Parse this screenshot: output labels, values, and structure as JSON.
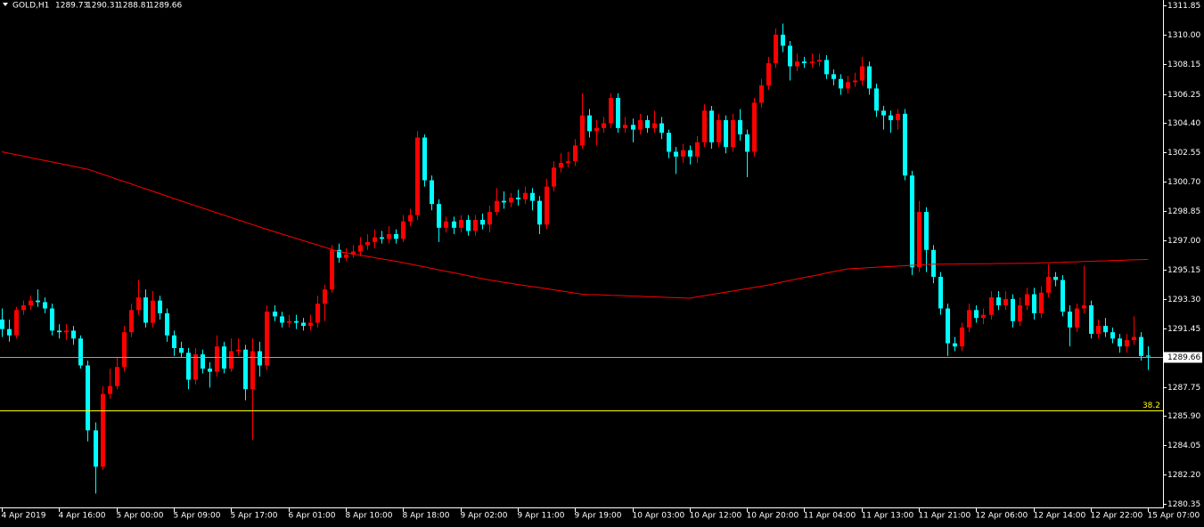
{
  "chart_data": {
    "type": "candlestick",
    "symbol": "GOLD,H1",
    "up_color": "#ff0000",
    "down_color": "#00ffff",
    "ylim": [
      1280.13,
      1312.19
    ],
    "yticks": [
      1311.85,
      {
        "value": 1310.0,
        "label": "1310.00"
      },
      1308.15,
      1306.25,
      {
        "value": 1304.4,
        "label": "1304.40"
      },
      1302.55,
      {
        "value": 1300.7,
        "label": "1300.70"
      },
      1298.85,
      {
        "value": 1297.0,
        "label": "1297.00"
      },
      1295.15,
      {
        "value": 1293.3,
        "label": "1293.30"
      },
      1291.45,
      1287.75,
      {
        "value": 1285.9,
        "label": "1285.90"
      },
      1284.05,
      {
        "value": 1282.2,
        "label": "1282.20"
      },
      1280.35
    ],
    "fib": {
      "label": "38.2",
      "price": 1286.26,
      "color": "#ffff00"
    },
    "price_line_color": "#a0a0b0",
    "categories": [
      "4 Apr 2019",
      null,
      null,
      null,
      null,
      null,
      null,
      null,
      "4 Apr 16:00",
      null,
      null,
      null,
      null,
      null,
      null,
      null,
      "5 Apr 00:00",
      null,
      null,
      null,
      null,
      null,
      null,
      null,
      "5 Apr 09:00",
      null,
      null,
      null,
      null,
      null,
      null,
      null,
      "5 Apr 17:00",
      null,
      null,
      null,
      null,
      null,
      null,
      null,
      "6 Apr 01:00",
      null,
      null,
      null,
      null,
      null,
      null,
      null,
      "8 Apr 10:00",
      null,
      null,
      null,
      null,
      null,
      null,
      null,
      "8 Apr 18:00",
      null,
      null,
      null,
      null,
      null,
      null,
      null,
      "9 Apr 02:00",
      null,
      null,
      null,
      null,
      null,
      null,
      null,
      "9 Apr 11:00",
      null,
      null,
      null,
      null,
      null,
      null,
      null,
      "9 Apr 19:00",
      null,
      null,
      null,
      null,
      null,
      null,
      null,
      "10 Apr 03:00",
      null,
      null,
      null,
      null,
      null,
      null,
      null,
      "10 Apr 12:00",
      null,
      null,
      null,
      null,
      null,
      null,
      null,
      "10 Apr 20:00",
      null,
      null,
      null,
      null,
      null,
      null,
      null,
      "11 Apr 04:00",
      null,
      null,
      null,
      null,
      null,
      null,
      null,
      "11 Apr 13:00",
      null,
      null,
      null,
      null,
      null,
      null,
      null,
      "11 Apr 21:00",
      null,
      null,
      null,
      null,
      null,
      null,
      null,
      "12 Apr 06:00",
      null,
      null,
      null,
      null,
      null,
      null,
      null,
      "12 Apr 14:00",
      null,
      null,
      null,
      null,
      null,
      null,
      null,
      "12 Apr 22:00",
      null,
      null,
      null,
      null,
      null,
      null,
      null,
      "15 Apr 07:00"
    ],
    "candles": [
      [
        1292.0,
        1292.7,
        1290.9,
        1291.4
      ],
      [
        1291.4,
        1292.0,
        1290.6,
        1291.0
      ],
      [
        1291.0,
        1292.8,
        1290.8,
        1292.6
      ],
      [
        1292.6,
        1293.2,
        1292.3,
        1292.9
      ],
      [
        1292.9,
        1293.5,
        1292.6,
        1293.2
      ],
      [
        1293.2,
        1293.9,
        1292.8,
        1293.1
      ],
      [
        1293.1,
        1293.4,
        1292.4,
        1292.7
      ],
      [
        1292.7,
        1293.0,
        1291.0,
        1291.3
      ],
      [
        1291.3,
        1291.7,
        1290.8,
        1291.2
      ],
      [
        1291.2,
        1291.7,
        1290.7,
        1291.3
      ],
      [
        1291.3,
        1291.6,
        1290.4,
        1290.8
      ],
      [
        1290.8,
        1291.0,
        1288.9,
        1289.1
      ],
      [
        1289.1,
        1289.4,
        1284.3,
        1285.0
      ],
      [
        1285.0,
        1285.5,
        1281.0,
        1282.7
      ],
      [
        1282.7,
        1287.8,
        1282.5,
        1287.3
      ],
      [
        1287.3,
        1288.9,
        1287.0,
        1287.8
      ],
      [
        1287.8,
        1289.6,
        1287.6,
        1289.0
      ],
      [
        1289.0,
        1291.6,
        1288.7,
        1291.2
      ],
      [
        1291.2,
        1293.0,
        1290.9,
        1292.6
      ],
      [
        1292.6,
        1294.5,
        1292.3,
        1293.4
      ],
      [
        1293.4,
        1293.9,
        1291.5,
        1291.8
      ],
      [
        1291.8,
        1293.8,
        1291.5,
        1293.2
      ],
      [
        1293.2,
        1293.5,
        1292.0,
        1292.4
      ],
      [
        1292.4,
        1292.7,
        1290.6,
        1291.0
      ],
      [
        1291.0,
        1291.3,
        1289.7,
        1290.2
      ],
      [
        1290.2,
        1290.6,
        1289.6,
        1289.9
      ],
      [
        1289.9,
        1290.2,
        1287.6,
        1288.2
      ],
      [
        1288.2,
        1290.2,
        1287.9,
        1289.8
      ],
      [
        1289.8,
        1290.1,
        1288.6,
        1288.9
      ],
      [
        1288.9,
        1289.3,
        1287.7,
        1288.7
      ],
      [
        1288.7,
        1291.0,
        1288.4,
        1290.3
      ],
      [
        1290.3,
        1290.6,
        1288.6,
        1288.9
      ],
      [
        1288.9,
        1290.8,
        1288.7,
        1290.0
      ],
      [
        1290.0,
        1290.8,
        1289.7,
        1290.1
      ],
      [
        1290.1,
        1290.4,
        1286.9,
        1287.6
      ],
      [
        1287.6,
        1290.8,
        1284.4,
        1290.0
      ],
      [
        1290.0,
        1290.6,
        1288.4,
        1289.1
      ],
      [
        1289.1,
        1292.9,
        1288.8,
        1292.5
      ],
      [
        1292.5,
        1292.9,
        1291.9,
        1292.2
      ],
      [
        1292.2,
        1292.5,
        1291.5,
        1291.8
      ],
      [
        1291.8,
        1292.3,
        1291.5,
        1291.9
      ],
      [
        1291.9,
        1292.3,
        1291.4,
        1291.8
      ],
      [
        1291.8,
        1292.1,
        1291.3,
        1291.6
      ],
      [
        1291.6,
        1292.3,
        1291.3,
        1291.8
      ],
      [
        1291.8,
        1293.5,
        1291.5,
        1293.0
      ],
      [
        1293.0,
        1294.2,
        1291.9,
        1293.9
      ],
      [
        1293.9,
        1296.7,
        1293.7,
        1296.4
      ],
      [
        1296.4,
        1296.8,
        1295.6,
        1295.9
      ],
      [
        1295.9,
        1296.5,
        1295.7,
        1296.1
      ],
      [
        1296.1,
        1296.7,
        1295.9,
        1296.3
      ],
      [
        1296.3,
        1297.2,
        1296.0,
        1296.7
      ],
      [
        1296.7,
        1297.4,
        1296.4,
        1296.9
      ],
      [
        1296.9,
        1297.7,
        1296.5,
        1297.2
      ],
      [
        1297.2,
        1297.6,
        1296.8,
        1297.1
      ],
      [
        1297.1,
        1297.9,
        1296.8,
        1297.4
      ],
      [
        1297.4,
        1297.7,
        1296.8,
        1297.1
      ],
      [
        1297.1,
        1298.6,
        1296.9,
        1298.2
      ],
      [
        1298.2,
        1299.0,
        1297.9,
        1298.6
      ],
      [
        1298.6,
        1303.9,
        1298.3,
        1303.5
      ],
      [
        1303.5,
        1303.7,
        1300.4,
        1300.8
      ],
      [
        1300.8,
        1301.1,
        1298.9,
        1299.3
      ],
      [
        1299.3,
        1299.6,
        1296.9,
        1297.8
      ],
      [
        1297.8,
        1298.5,
        1297.5,
        1298.2
      ],
      [
        1298.2,
        1298.5,
        1297.4,
        1297.8
      ],
      [
        1297.8,
        1298.6,
        1297.5,
        1298.3
      ],
      [
        1298.3,
        1298.6,
        1297.3,
        1297.6
      ],
      [
        1297.6,
        1298.6,
        1297.3,
        1298.3
      ],
      [
        1298.3,
        1298.7,
        1297.7,
        1298.0
      ],
      [
        1298.0,
        1299.2,
        1297.5,
        1298.8
      ],
      [
        1298.8,
        1300.3,
        1298.6,
        1299.5
      ],
      [
        1299.5,
        1300.1,
        1299.0,
        1299.4
      ],
      [
        1299.4,
        1300.0,
        1299.1,
        1299.7
      ],
      [
        1299.7,
        1300.2,
        1299.2,
        1299.6
      ],
      [
        1299.6,
        1300.4,
        1299.3,
        1300.0
      ],
      [
        1300.0,
        1300.3,
        1298.9,
        1299.5
      ],
      [
        1299.5,
        1299.8,
        1297.4,
        1298.0
      ],
      [
        1298.0,
        1300.9,
        1297.7,
        1300.4
      ],
      [
        1300.4,
        1302.0,
        1300.1,
        1301.6
      ],
      [
        1301.6,
        1302.5,
        1301.3,
        1301.9
      ],
      [
        1301.9,
        1302.6,
        1301.6,
        1302.0
      ],
      [
        1302.0,
        1303.4,
        1301.7,
        1303.0
      ],
      [
        1303.0,
        1306.3,
        1302.8,
        1304.9
      ],
      [
        1304.9,
        1305.3,
        1303.5,
        1303.9
      ],
      [
        1303.9,
        1304.6,
        1303.0,
        1304.1
      ],
      [
        1304.1,
        1304.8,
        1303.8,
        1304.4
      ],
      [
        1304.4,
        1306.3,
        1304.1,
        1306.0
      ],
      [
        1306.0,
        1306.3,
        1303.8,
        1304.1
      ],
      [
        1304.1,
        1304.8,
        1303.8,
        1304.3
      ],
      [
        1304.3,
        1304.7,
        1303.2,
        1304.0
      ],
      [
        1304.0,
        1305.0,
        1303.7,
        1304.6
      ],
      [
        1304.6,
        1304.9,
        1303.8,
        1304.1
      ],
      [
        1304.1,
        1305.2,
        1303.8,
        1304.4
      ],
      [
        1304.4,
        1304.8,
        1303.4,
        1303.8
      ],
      [
        1303.8,
        1304.0,
        1302.2,
        1302.6
      ],
      [
        1302.6,
        1302.9,
        1301.2,
        1302.3
      ],
      [
        1302.3,
        1303.1,
        1301.9,
        1302.7
      ],
      [
        1302.7,
        1303.0,
        1301.8,
        1302.3
      ],
      [
        1302.3,
        1303.6,
        1301.9,
        1303.2
      ],
      [
        1303.2,
        1305.6,
        1302.9,
        1305.2
      ],
      [
        1305.2,
        1305.5,
        1302.8,
        1303.2
      ],
      [
        1303.2,
        1305.0,
        1302.9,
        1304.6
      ],
      [
        1304.6,
        1304.9,
        1302.5,
        1302.9
      ],
      [
        1302.9,
        1305.0,
        1302.6,
        1304.6
      ],
      [
        1304.6,
        1305.3,
        1303.3,
        1303.7
      ],
      [
        1303.7,
        1304.0,
        1301.0,
        1302.6
      ],
      [
        1302.6,
        1306.0,
        1302.3,
        1305.7
      ],
      [
        1305.7,
        1307.2,
        1305.4,
        1306.8
      ],
      [
        1306.8,
        1308.6,
        1306.5,
        1308.2
      ],
      [
        1308.2,
        1310.4,
        1307.9,
        1310.0
      ],
      [
        1310.0,
        1310.7,
        1308.9,
        1309.3
      ],
      [
        1309.3,
        1309.6,
        1307.1,
        1308.0
      ],
      [
        1308.0,
        1308.8,
        1307.7,
        1308.3
      ],
      [
        1308.3,
        1308.6,
        1307.9,
        1308.2
      ],
      [
        1308.2,
        1308.8,
        1307.9,
        1308.3
      ],
      [
        1308.3,
        1308.8,
        1308.0,
        1308.4
      ],
      [
        1308.4,
        1308.7,
        1307.2,
        1307.5
      ],
      [
        1307.5,
        1307.8,
        1306.8,
        1307.2
      ],
      [
        1307.2,
        1307.5,
        1306.2,
        1306.6
      ],
      [
        1306.6,
        1307.4,
        1306.3,
        1307.0
      ],
      [
        1307.0,
        1307.6,
        1306.7,
        1307.1
      ],
      [
        1307.1,
        1308.6,
        1306.8,
        1308.0
      ],
      [
        1308.0,
        1308.3,
        1306.2,
        1306.6
      ],
      [
        1306.6,
        1306.9,
        1304.8,
        1305.2
      ],
      [
        1305.2,
        1305.5,
        1304.0,
        1304.9
      ],
      [
        1304.9,
        1305.2,
        1303.8,
        1304.6
      ],
      [
        1304.6,
        1305.3,
        1304.0,
        1305.0
      ],
      [
        1305.0,
        1305.3,
        1300.8,
        1301.1
      ],
      [
        1301.1,
        1301.4,
        1294.8,
        1295.3
      ],
      [
        1295.3,
        1299.5,
        1295.0,
        1298.8
      ],
      [
        1298.8,
        1299.1,
        1295.0,
        1296.4
      ],
      [
        1296.4,
        1296.7,
        1294.3,
        1294.7
      ],
      [
        1294.7,
        1295.0,
        1292.3,
        1292.7
      ],
      [
        1292.7,
        1293.0,
        1289.7,
        1290.5
      ],
      [
        1290.5,
        1290.9,
        1290.0,
        1290.3
      ],
      [
        1290.3,
        1291.8,
        1290.0,
        1291.5
      ],
      [
        1291.5,
        1293.0,
        1291.2,
        1292.6
      ],
      [
        1292.6,
        1292.9,
        1291.8,
        1292.1
      ],
      [
        1292.1,
        1292.7,
        1291.7,
        1292.3
      ],
      [
        1292.3,
        1293.8,
        1292.0,
        1293.4
      ],
      [
        1293.4,
        1293.8,
        1292.6,
        1292.9
      ],
      [
        1292.9,
        1293.8,
        1292.6,
        1293.3
      ],
      [
        1293.3,
        1293.6,
        1291.5,
        1291.9
      ],
      [
        1291.9,
        1293.4,
        1291.6,
        1292.9
      ],
      [
        1292.9,
        1294.0,
        1292.6,
        1293.6
      ],
      [
        1293.6,
        1294.0,
        1292.0,
        1292.4
      ],
      [
        1292.4,
        1294.1,
        1292.1,
        1293.7
      ],
      [
        1293.7,
        1295.5,
        1293.4,
        1294.7
      ],
      [
        1294.7,
        1295.0,
        1294.1,
        1294.5
      ],
      [
        1294.5,
        1294.8,
        1292.2,
        1292.5
      ],
      [
        1292.5,
        1292.9,
        1290.3,
        1291.5
      ],
      [
        1291.5,
        1293.0,
        1291.2,
        1292.7
      ],
      [
        1292.7,
        1295.4,
        1292.4,
        1292.9
      ],
      [
        1292.9,
        1293.2,
        1290.8,
        1291.1
      ],
      [
        1291.1,
        1292.0,
        1290.8,
        1291.6
      ],
      [
        1291.6,
        1292.1,
        1290.9,
        1291.2
      ],
      [
        1291.2,
        1291.5,
        1290.5,
        1290.8
      ],
      [
        1290.8,
        1291.1,
        1289.9,
        1290.3
      ],
      [
        1290.3,
        1291.1,
        1289.9,
        1290.7
      ],
      [
        1290.7,
        1292.2,
        1290.4,
        1290.9
      ],
      [
        1290.9,
        1291.2,
        1289.4,
        1289.7
      ],
      [
        1289.73,
        1290.31,
        1288.81,
        1289.66
      ]
    ],
    "ma": {
      "color": "#ff0000",
      "values": [
        1302.6,
        1302.51,
        1302.42,
        1302.33,
        1302.23,
        1302.14,
        1302.05,
        1301.96,
        1301.87,
        1301.78,
        1301.68,
        1301.59,
        1301.5,
        1301.35,
        1301.19,
        1301.04,
        1300.88,
        1300.73,
        1300.58,
        1300.42,
        1300.27,
        1300.12,
        1299.96,
        1299.81,
        1299.65,
        1299.5,
        1299.35,
        1299.2,
        1299.05,
        1298.9,
        1298.75,
        1298.6,
        1298.45,
        1298.3,
        1298.15,
        1298.0,
        1297.85,
        1297.7,
        1297.56,
        1297.42,
        1297.28,
        1297.14,
        1297.0,
        1296.86,
        1296.72,
        1296.58,
        1296.44,
        1296.3,
        1296.22,
        1296.14,
        1296.07,
        1295.99,
        1295.91,
        1295.83,
        1295.76,
        1295.68,
        1295.6,
        1295.51,
        1295.42,
        1295.33,
        1295.23,
        1295.14,
        1295.05,
        1294.96,
        1294.87,
        1294.78,
        1294.68,
        1294.59,
        1294.5,
        1294.43,
        1294.36,
        1294.29,
        1294.22,
        1294.15,
        1294.08,
        1294.02,
        1293.95,
        1293.88,
        1293.81,
        1293.74,
        1293.67,
        1293.6,
        1293.58,
        1293.57,
        1293.55,
        1293.53,
        1293.52,
        1293.5,
        1293.48,
        1293.47,
        1293.45,
        1293.43,
        1293.42,
        1293.4,
        1293.38,
        1293.37,
        1293.35,
        1293.43,
        1293.5,
        1293.58,
        1293.65,
        1293.73,
        1293.8,
        1293.88,
        1293.95,
        1294.03,
        1294.1,
        1294.19,
        1294.28,
        1294.38,
        1294.47,
        1294.56,
        1294.65,
        1294.74,
        1294.83,
        1294.93,
        1295.02,
        1295.11,
        1295.2,
        1295.23,
        1295.25,
        1295.28,
        1295.3,
        1295.33,
        1295.35,
        1295.38,
        1295.4,
        1295.43,
        1295.45,
        1295.48,
        1295.5,
        1295.5,
        1295.51,
        1295.51,
        1295.52,
        1295.52,
        1295.52,
        1295.53,
        1295.53,
        1295.54,
        1295.54,
        1295.54,
        1295.55,
        1295.55,
        1295.56,
        1295.58,
        1295.59,
        1295.61,
        1295.62,
        1295.64,
        1295.65,
        1295.67,
        1295.68,
        1295.7,
        1295.71,
        1295.73,
        1295.74,
        1295.76,
        1295.77,
        1295.79,
        1295.8
      ]
    }
  }
}
